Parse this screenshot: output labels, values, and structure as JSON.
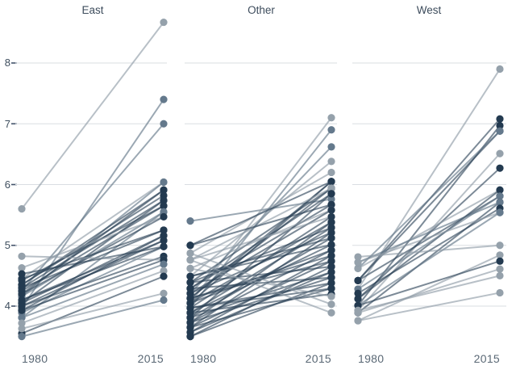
{
  "chart_data": {
    "type": "slope",
    "title": "",
    "x_categories": [
      "1980",
      "2015"
    ],
    "y_ticks": [
      8,
      7,
      6,
      5,
      4
    ],
    "ylim": [
      3.4,
      8.8
    ],
    "grid": true,
    "legend": "none",
    "colors": {
      "dark_dot": "#233a50",
      "mid_dot": "#64798c",
      "light_dot": "#95a1ab",
      "dark_line": "#2c4257",
      "mid_line": "#5d7285",
      "light_line": "#8c99a4",
      "gridline": "#dadee2",
      "tick": "#43536300",
      "axis_text": "#3e4e5e",
      "x_label_text": "#5a6875"
    },
    "facets": [
      {
        "title": "East",
        "lines": [
          [
            5.6,
            8.67,
            "L"
          ],
          [
            3.97,
            7.4,
            "M"
          ],
          [
            4.25,
            7.0,
            "M"
          ],
          [
            4.45,
            6.04,
            "L"
          ],
          [
            4.16,
            6.04,
            "M"
          ],
          [
            4.2,
            5.91,
            "D"
          ],
          [
            4.35,
            5.91,
            "D"
          ],
          [
            4.35,
            5.82,
            "D"
          ],
          [
            4.05,
            5.74,
            "D"
          ],
          [
            4.3,
            5.74,
            "D"
          ],
          [
            4.42,
            5.65,
            "D"
          ],
          [
            4.25,
            5.65,
            "D"
          ],
          [
            4.16,
            5.55,
            "M"
          ],
          [
            3.81,
            5.55,
            "M"
          ],
          [
            4.63,
            5.47,
            "L"
          ],
          [
            4.2,
            5.47,
            "D"
          ],
          [
            4.3,
            5.25,
            "D"
          ],
          [
            4.45,
            5.25,
            "D"
          ],
          [
            3.93,
            5.16,
            "D"
          ],
          [
            4.05,
            5.16,
            "D"
          ],
          [
            4.1,
            5.08,
            "D"
          ],
          [
            4.0,
            5.08,
            "D"
          ],
          [
            4.53,
            4.98,
            "D"
          ],
          [
            3.89,
            4.98,
            "M"
          ],
          [
            4.1,
            4.98,
            "D"
          ],
          [
            4.0,
            4.82,
            "D"
          ],
          [
            4.82,
            4.76,
            "L"
          ],
          [
            3.93,
            4.76,
            "D"
          ],
          [
            3.81,
            4.69,
            "M"
          ],
          [
            3.72,
            4.58,
            "L"
          ],
          [
            3.55,
            4.49,
            "D"
          ],
          [
            3.63,
            4.21,
            "L"
          ],
          [
            3.5,
            4.1,
            "M"
          ]
        ]
      },
      {
        "title": "Other",
        "lines": [
          [
            5.4,
            5.76,
            "M"
          ],
          [
            4.05,
            7.1,
            "L"
          ],
          [
            3.97,
            6.9,
            "M"
          ],
          [
            4.21,
            6.62,
            "M"
          ],
          [
            4.49,
            6.38,
            "L"
          ],
          [
            4.87,
            6.2,
            "L"
          ],
          [
            4.13,
            6.05,
            "D"
          ],
          [
            4.05,
            6.05,
            "D"
          ],
          [
            5.0,
            6.05,
            "D"
          ],
          [
            4.39,
            5.94,
            "D"
          ],
          [
            4.13,
            5.94,
            "D"
          ],
          [
            4.76,
            5.94,
            "L"
          ],
          [
            4.29,
            5.85,
            "D"
          ],
          [
            3.81,
            5.85,
            "D"
          ],
          [
            5.0,
            5.67,
            "D"
          ],
          [
            4.29,
            5.67,
            "D"
          ],
          [
            4.62,
            5.58,
            "L"
          ],
          [
            4.21,
            5.58,
            "D"
          ],
          [
            4.76,
            5.47,
            "L"
          ],
          [
            3.97,
            5.47,
            "D"
          ],
          [
            4.05,
            5.38,
            "D"
          ],
          [
            3.73,
            5.38,
            "D"
          ],
          [
            3.89,
            5.29,
            "D"
          ],
          [
            4.39,
            5.29,
            "D"
          ],
          [
            4.21,
            5.21,
            "D"
          ],
          [
            3.65,
            5.21,
            "D"
          ],
          [
            3.81,
            5.12,
            "D"
          ],
          [
            4.49,
            5.12,
            "D"
          ],
          [
            4.49,
            5.01,
            "D"
          ],
          [
            3.89,
            5.01,
            "D"
          ],
          [
            3.73,
            4.92,
            "D"
          ],
          [
            4.05,
            4.92,
            "D"
          ],
          [
            4.13,
            4.83,
            "D"
          ],
          [
            3.57,
            4.83,
            "D"
          ],
          [
            3.65,
            4.74,
            "D"
          ],
          [
            4.13,
            4.74,
            "D"
          ],
          [
            4.39,
            4.65,
            "D"
          ],
          [
            3.5,
            4.65,
            "D"
          ],
          [
            3.57,
            4.56,
            "D"
          ],
          [
            3.81,
            4.56,
            "D"
          ],
          [
            4.29,
            4.47,
            "D"
          ],
          [
            3.73,
            4.47,
            "D"
          ],
          [
            3.5,
            4.38,
            "D"
          ],
          [
            3.97,
            4.38,
            "D"
          ],
          [
            3.97,
            4.29,
            "D"
          ],
          [
            3.65,
            4.29,
            "D"
          ],
          [
            3.89,
            4.2,
            "D"
          ],
          [
            4.62,
            4.16,
            "L"
          ],
          [
            4.87,
            4.03,
            "L"
          ],
          [
            4.76,
            3.89,
            "L"
          ]
        ]
      },
      {
        "title": "West",
        "lines": [
          [
            4.28,
            7.9,
            "L"
          ],
          [
            4.42,
            7.08,
            "D"
          ],
          [
            4.01,
            6.97,
            "D"
          ],
          [
            4.42,
            6.88,
            "D"
          ],
          [
            4.62,
            6.88,
            "M"
          ],
          [
            3.93,
            6.51,
            "L"
          ],
          [
            4.12,
            6.27,
            "D"
          ],
          [
            4.62,
            5.91,
            "L"
          ],
          [
            4.12,
            5.91,
            "D"
          ],
          [
            4.42,
            5.81,
            "D"
          ],
          [
            4.28,
            5.81,
            "M"
          ],
          [
            3.89,
            5.71,
            "D"
          ],
          [
            4.72,
            5.71,
            "M"
          ],
          [
            4.21,
            5.61,
            "D"
          ],
          [
            4.72,
            5.54,
            "L"
          ],
          [
            4.01,
            5.54,
            "M"
          ],
          [
            4.81,
            5.0,
            "L"
          ],
          [
            3.76,
            4.84,
            "L"
          ],
          [
            4.01,
            4.74,
            "D"
          ],
          [
            3.89,
            4.61,
            "L"
          ],
          [
            3.93,
            4.5,
            "L"
          ],
          [
            3.76,
            4.22,
            "L"
          ]
        ]
      }
    ]
  }
}
